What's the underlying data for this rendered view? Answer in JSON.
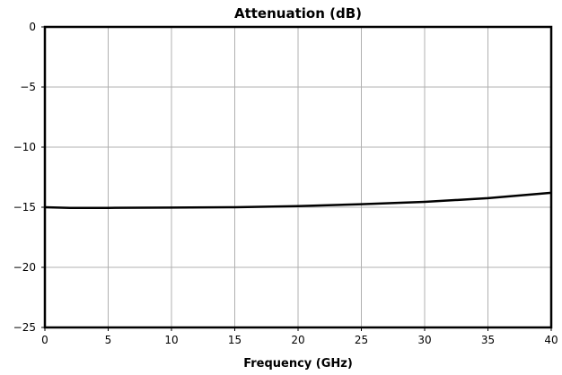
{
  "chart_data": {
    "type": "line",
    "title": "Attenuation (dB)",
    "xlabel": "Frequency (GHz)",
    "ylabel": "",
    "xlim": [
      0,
      40
    ],
    "ylim": [
      -25,
      0
    ],
    "xticks": [
      0,
      5,
      10,
      15,
      20,
      25,
      30,
      35,
      40
    ],
    "yticks": [
      0,
      -5,
      -10,
      -15,
      -20,
      -25
    ],
    "xtick_labels": [
      "0",
      "5",
      "10",
      "15",
      "20",
      "25",
      "30",
      "35",
      "40"
    ],
    "ytick_labels": [
      "0",
      "−5",
      "−10",
      "−15",
      "−20",
      "−25"
    ],
    "grid": true,
    "colors": {
      "series": "#000000",
      "grid": "#b0b0b0"
    },
    "series": [
      {
        "x": [
          0,
          2,
          5,
          10,
          15,
          20,
          25,
          30,
          35,
          40
        ],
        "values": [
          -15.0,
          -15.05,
          -15.05,
          -15.03,
          -15.0,
          -14.9,
          -14.75,
          -14.55,
          -14.25,
          -13.8
        ]
      }
    ]
  }
}
